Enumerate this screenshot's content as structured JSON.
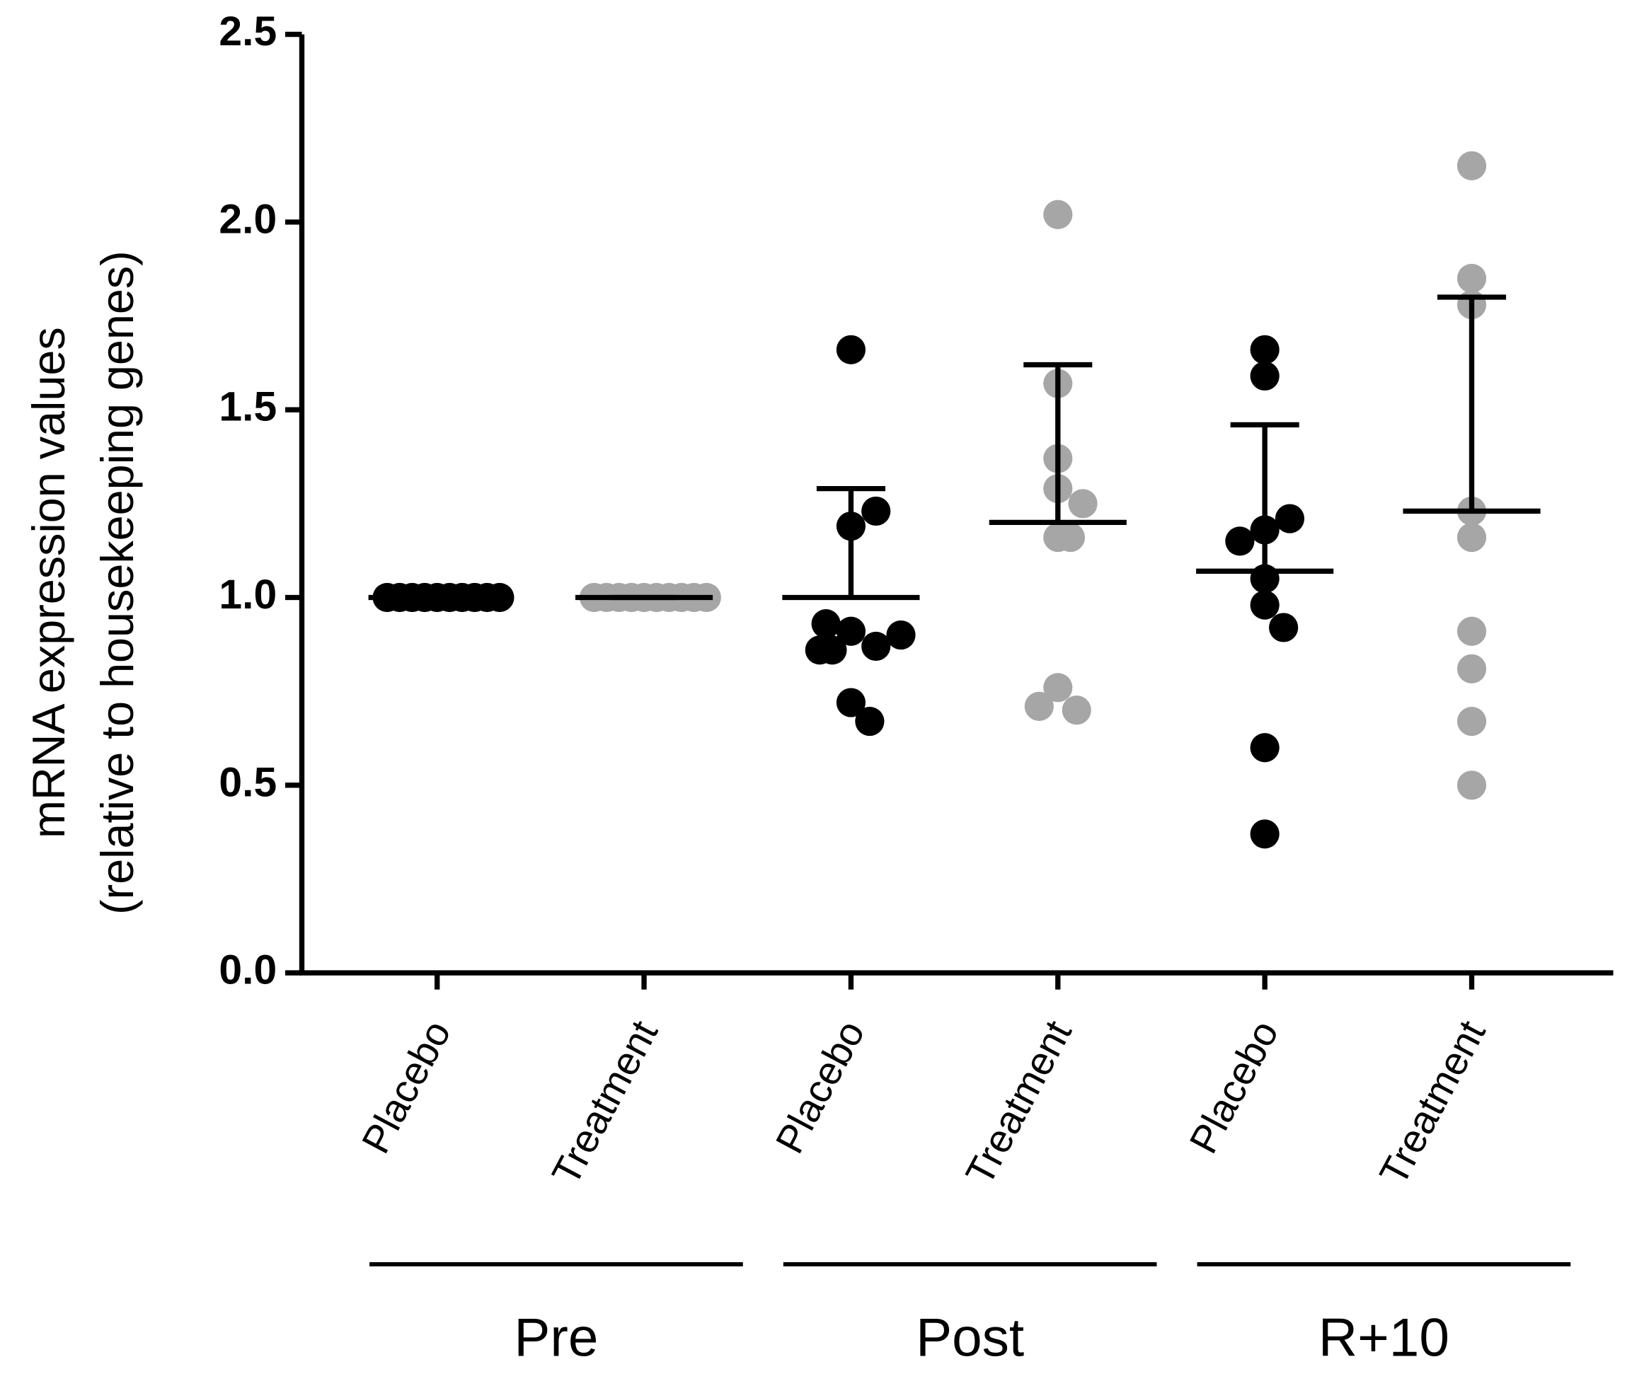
{
  "chart_data": {
    "type": "dotplot",
    "y_label": [
      "mRNA expression values",
      "(relative to housekeeping genes)"
    ],
    "categories": [
      "Placebo",
      "Treatment",
      "Placebo",
      "Treatment",
      "Placebo",
      "Treatment"
    ],
    "groups": [
      "Pre",
      "Post",
      "R+10"
    ],
    "colors": [
      "#000000",
      "#a6a6a6",
      "#000000",
      "#a6a6a6",
      "#000000",
      "#a6a6a6"
    ],
    "points": [
      [
        1,
        1,
        1,
        1,
        1,
        1,
        1,
        1,
        1,
        1
      ],
      [
        1,
        1,
        1,
        1,
        1,
        1,
        1,
        1,
        1,
        1
      ],
      [
        1.66,
        1.19,
        1.23,
        0.91,
        0.87,
        0.86,
        0.86,
        0.9,
        0.93,
        0.72,
        0.67
      ],
      [
        2.02,
        1.57,
        1.37,
        1.29,
        1.25,
        1.16,
        1.16,
        0.76,
        0.7,
        0.71
      ],
      [
        1.66,
        1.59,
        1.18,
        1.21,
        1.15,
        1.05,
        0.98,
        0.92,
        0.6,
        0.37
      ],
      [
        2.15,
        1.85,
        1.78,
        1.23,
        1.16,
        0.91,
        0.81,
        0.67,
        0.5
      ]
    ],
    "means": [
      1,
      1,
      1.0,
      1.2,
      1.07,
      1.23
    ],
    "sd": [
      0,
      0,
      0.29,
      0.42,
      0.39,
      0.57
    ],
    "ylim": [
      0,
      2.5
    ],
    "yticks": [
      {
        "value": 0,
        "label": "0.0"
      },
      0.5,
      {
        "value": 1,
        "label": "1.0"
      },
      1.5,
      {
        "value": 2,
        "label": "2.0"
      },
      2.5
    ]
  }
}
